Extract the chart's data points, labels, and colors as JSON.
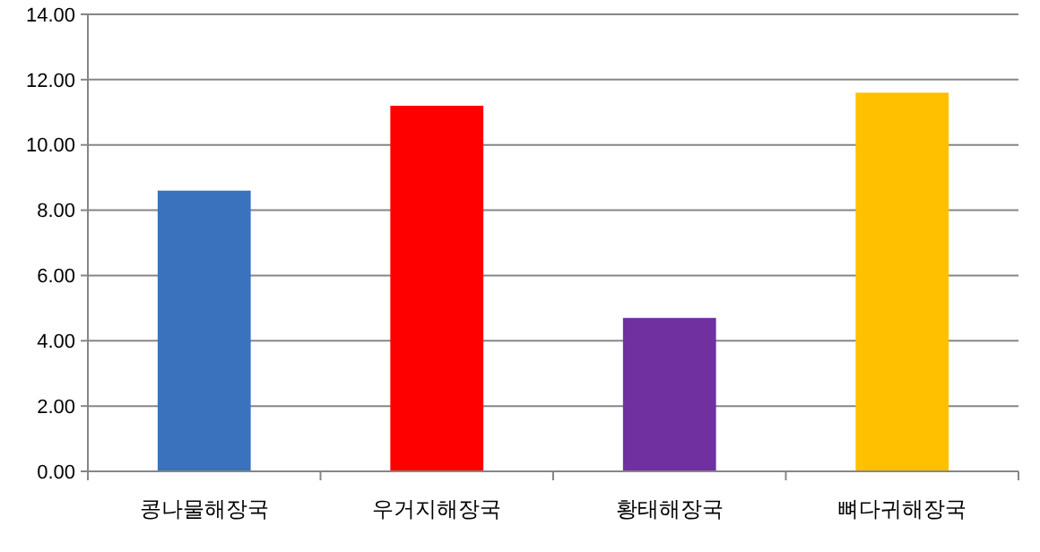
{
  "chart_data": {
    "type": "bar",
    "categories": [
      "콩나물해장국",
      "우거지해장국",
      "황태해장국",
      "뼈다귀해장국"
    ],
    "values": [
      8.6,
      11.2,
      4.7,
      11.6
    ],
    "colors": [
      "#3a72be",
      "#ff0000",
      "#7030a0",
      "#ffc000"
    ],
    "ylim": [
      0,
      14
    ],
    "yticks": [
      {
        "value": 0,
        "label": "0.00"
      },
      {
        "value": 2,
        "label": "2.00"
      },
      {
        "value": 4,
        "label": "4.00"
      },
      {
        "value": 6,
        "label": "6.00"
      },
      {
        "value": 8,
        "label": "8.00"
      },
      {
        "value": 10,
        "label": "10.00"
      },
      {
        "value": 12,
        "label": "12.00"
      },
      {
        "value": 14,
        "label": "14.00"
      }
    ],
    "grid": "y"
  }
}
